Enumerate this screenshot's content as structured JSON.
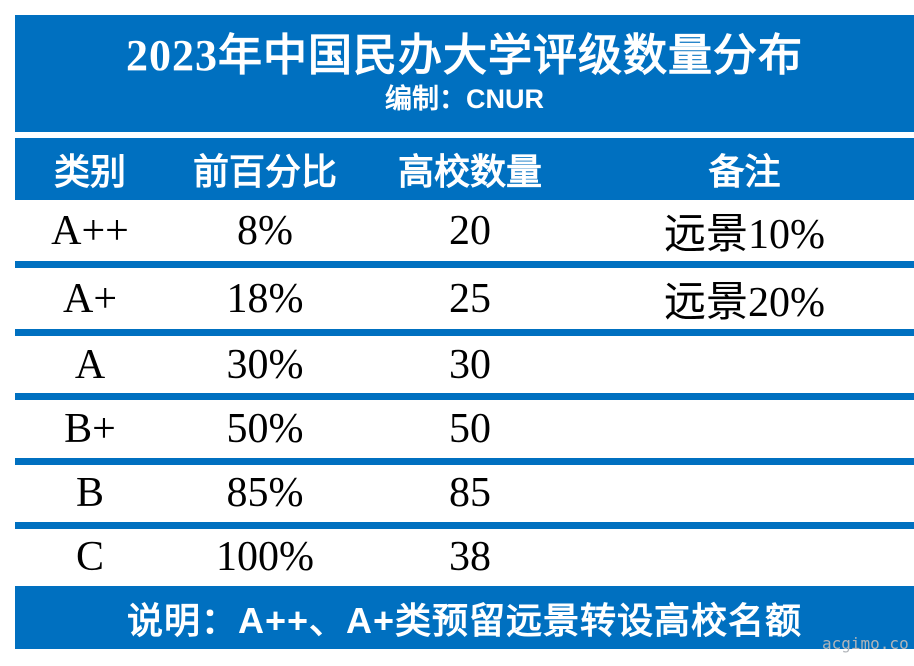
{
  "title": "2023年中国民办大学评级数量分布",
  "subtitle": "编制：CNUR",
  "table": {
    "columns": [
      "类别",
      "前百分比",
      "高校数量",
      "备注"
    ],
    "rows": [
      {
        "category": "A++",
        "percentile": "8%",
        "count": "20",
        "note": "远景10%"
      },
      {
        "category": "A+",
        "percentile": "18%",
        "count": "25",
        "note": "远景20%"
      },
      {
        "category": "A",
        "percentile": "30%",
        "count": "30",
        "note": ""
      },
      {
        "category": "B+",
        "percentile": "50%",
        "count": "50",
        "note": ""
      },
      {
        "category": "B",
        "percentile": "85%",
        "count": "85",
        "note": ""
      },
      {
        "category": "C",
        "percentile": "100%",
        "count": "38",
        "note": ""
      }
    ]
  },
  "footer": {
    "note": "说明：A++、A+类预留远景转设高校名额"
  },
  "watermark": "acgimo.co",
  "colors": {
    "accent_blue": "#0070C0",
    "row_background": "#ffffff",
    "header_text": "#ffffff",
    "data_text": "#000000",
    "watermark_gray": "#b0b4b9"
  },
  "chart_data": {
    "type": "table",
    "title": "2023年中国民办大学评级数量分布",
    "subtitle": "编制：CNUR",
    "columns": [
      "类别",
      "前百分比",
      "高校数量",
      "备注"
    ],
    "rows": [
      [
        "A++",
        "8%",
        20,
        "远景10%"
      ],
      [
        "A+",
        "18%",
        25,
        "远景20%"
      ],
      [
        "A",
        "30%",
        30,
        ""
      ],
      [
        "B+",
        "50%",
        50,
        ""
      ],
      [
        "B",
        "85%",
        85,
        ""
      ],
      [
        "C",
        "100%",
        38,
        ""
      ]
    ],
    "footnote": "说明：A++、A+类预留远景转设高校名额",
    "layout_hints": {
      "header_fill": "#0070C0",
      "separator_fill": "#0070C0",
      "grid": "horizontal-only"
    }
  }
}
